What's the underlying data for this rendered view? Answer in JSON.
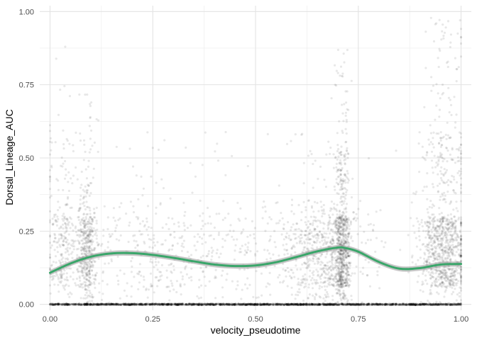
{
  "chart_data": {
    "type": "scatter",
    "xlabel": "velocity_pseudotime",
    "ylabel": "Dorsal_Lineage_AUC",
    "xlim": [
      -0.025,
      1.025
    ],
    "ylim": [
      -0.02,
      1.02
    ],
    "x_ticks": [
      0.0,
      0.25,
      0.5,
      0.75,
      1.0
    ],
    "x_tick_labels": [
      "0.00",
      "0.25",
      "0.50",
      "0.75",
      "1.00"
    ],
    "y_ticks": [
      0.0,
      0.25,
      0.5,
      0.75,
      1.0
    ],
    "y_tick_labels": [
      "0.00",
      "0.25",
      "0.50",
      "0.75",
      "1.00"
    ],
    "grid": true,
    "point_color": "#000000",
    "point_alpha": 0.09,
    "smooth_color": "#3aa66a",
    "ribbon_color": "#999999",
    "point_clusters": [
      {
        "x_center": 0.03,
        "x_spread": 0.02,
        "count": 250,
        "y_max": 0.95
      },
      {
        "x_center": 0.09,
        "x_spread": 0.012,
        "count": 450,
        "y_max": 0.72
      },
      {
        "x_center": 0.3,
        "x_spread": 0.14,
        "count": 500,
        "y_max": 0.6
      },
      {
        "x_center": 0.66,
        "x_spread": 0.06,
        "count": 650,
        "y_max": 0.6
      },
      {
        "x_center": 0.71,
        "x_spread": 0.01,
        "count": 700,
        "y_max": 0.88
      },
      {
        "x_center": 0.96,
        "x_spread": 0.03,
        "count": 1000,
        "y_max": 0.98
      }
    ],
    "zero_band": {
      "x_range": [
        0.0,
        1.0
      ],
      "y": 0.0,
      "count": 1800
    },
    "smooth_line": {
      "x": [
        0.0,
        0.05,
        0.1,
        0.15,
        0.2,
        0.25,
        0.3,
        0.35,
        0.4,
        0.45,
        0.5,
        0.55,
        0.6,
        0.65,
        0.7,
        0.72,
        0.75,
        0.8,
        0.85,
        0.9,
        0.95,
        1.0
      ],
      "y": [
        0.108,
        0.14,
        0.163,
        0.174,
        0.175,
        0.169,
        0.159,
        0.147,
        0.136,
        0.131,
        0.133,
        0.144,
        0.162,
        0.181,
        0.194,
        0.192,
        0.18,
        0.145,
        0.122,
        0.124,
        0.136,
        0.138
      ],
      "band_halfwidth": 0.009
    }
  }
}
